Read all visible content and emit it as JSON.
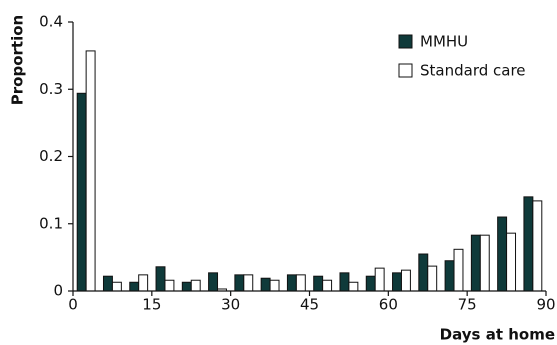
{
  "chart_data": {
    "type": "bar",
    "x_label": "Days at home",
    "y_label": "Proportion",
    "categories": [
      null,
      null,
      null,
      null,
      null,
      null,
      null,
      null,
      null,
      null,
      null,
      null,
      null,
      null,
      null,
      null,
      null,
      null
    ],
    "series": [
      {
        "name": "MMHU",
        "color": "#0f3a3a",
        "values": [
          0.294,
          0.022,
          0.013,
          0.036,
          0.013,
          0.027,
          0.024,
          0.019,
          0.024,
          0.022,
          0.027,
          0.022,
          0.027,
          0.055,
          0.045,
          0.083,
          0.11,
          0.14
        ]
      },
      {
        "name": "Standard care",
        "color": "#ffffff",
        "values": [
          0.357,
          0.013,
          0.024,
          0.016,
          0.016,
          0.003,
          0.024,
          0.016,
          0.024,
          0.016,
          0.013,
          0.034,
          0.031,
          0.037,
          0.062,
          0.083,
          0.086,
          0.134
        ]
      }
    ],
    "xlim": [
      0,
      90
    ],
    "xticks": [
      0,
      15,
      30,
      45,
      60,
      75,
      90
    ],
    "ylim": [
      0,
      0.4
    ],
    "yticks": [
      0,
      0.1,
      0.2,
      0.3,
      0.4
    ],
    "legend": "upper right"
  }
}
